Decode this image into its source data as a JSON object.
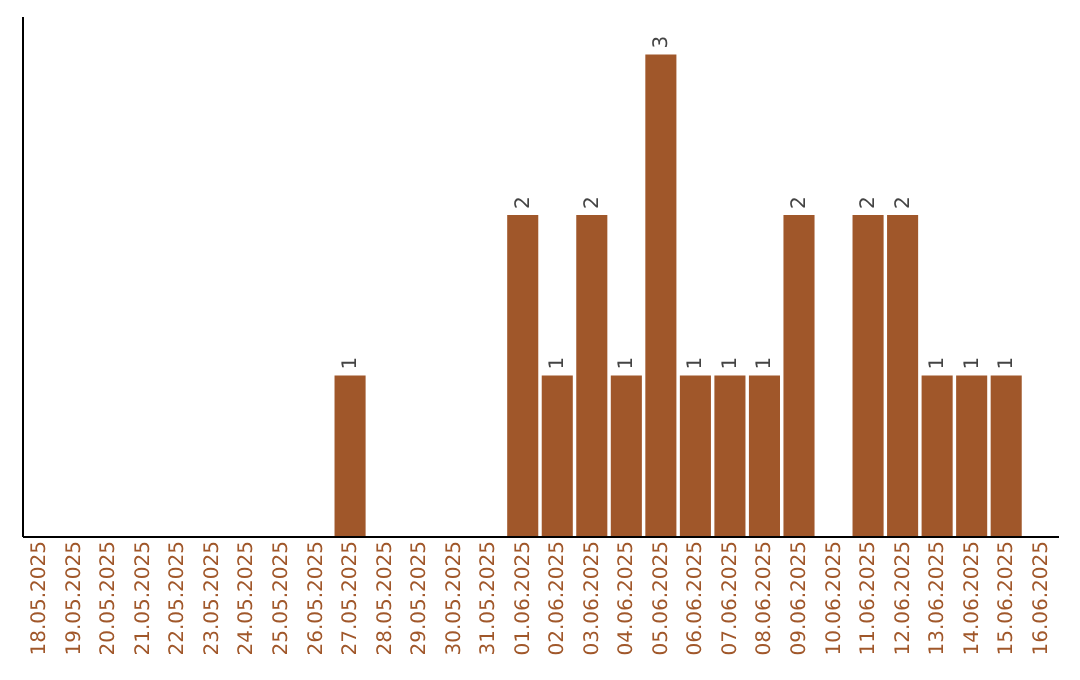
{
  "chart_data": {
    "type": "bar",
    "categories": [
      "18.05.2025",
      "19.05.2025",
      "20.05.2025",
      "21.05.2025",
      "22.05.2025",
      "23.05.2025",
      "24.05.2025",
      "25.05.2025",
      "26.05.2025",
      "27.05.2025",
      "28.05.2025",
      "29.05.2025",
      "30.05.2025",
      "31.05.2025",
      "01.06.2025",
      "02.06.2025",
      "03.06.2025",
      "04.06.2025",
      "05.06.2025",
      "06.06.2025",
      "07.06.2025",
      "08.06.2025",
      "09.06.2025",
      "10.06.2025",
      "11.06.2025",
      "12.06.2025",
      "13.06.2025",
      "14.06.2025",
      "15.06.2025",
      "16.06.2025"
    ],
    "values": [
      0,
      0,
      0,
      0,
      0,
      0,
      0,
      0,
      0,
      1,
      0,
      0,
      0,
      0,
      2,
      1,
      2,
      1,
      3,
      1,
      1,
      1,
      2,
      0,
      2,
      2,
      1,
      1,
      1,
      0
    ],
    "value_labels": [
      null,
      null,
      null,
      null,
      null,
      null,
      null,
      null,
      null,
      "1",
      null,
      null,
      null,
      null,
      "2",
      "1",
      "2",
      "1",
      "3",
      "1",
      "1",
      "1",
      "2",
      null,
      "2",
      "2",
      "1",
      "1",
      "1",
      null
    ],
    "color": "#a0572a",
    "tick_labels": "x",
    "grid": false
  }
}
